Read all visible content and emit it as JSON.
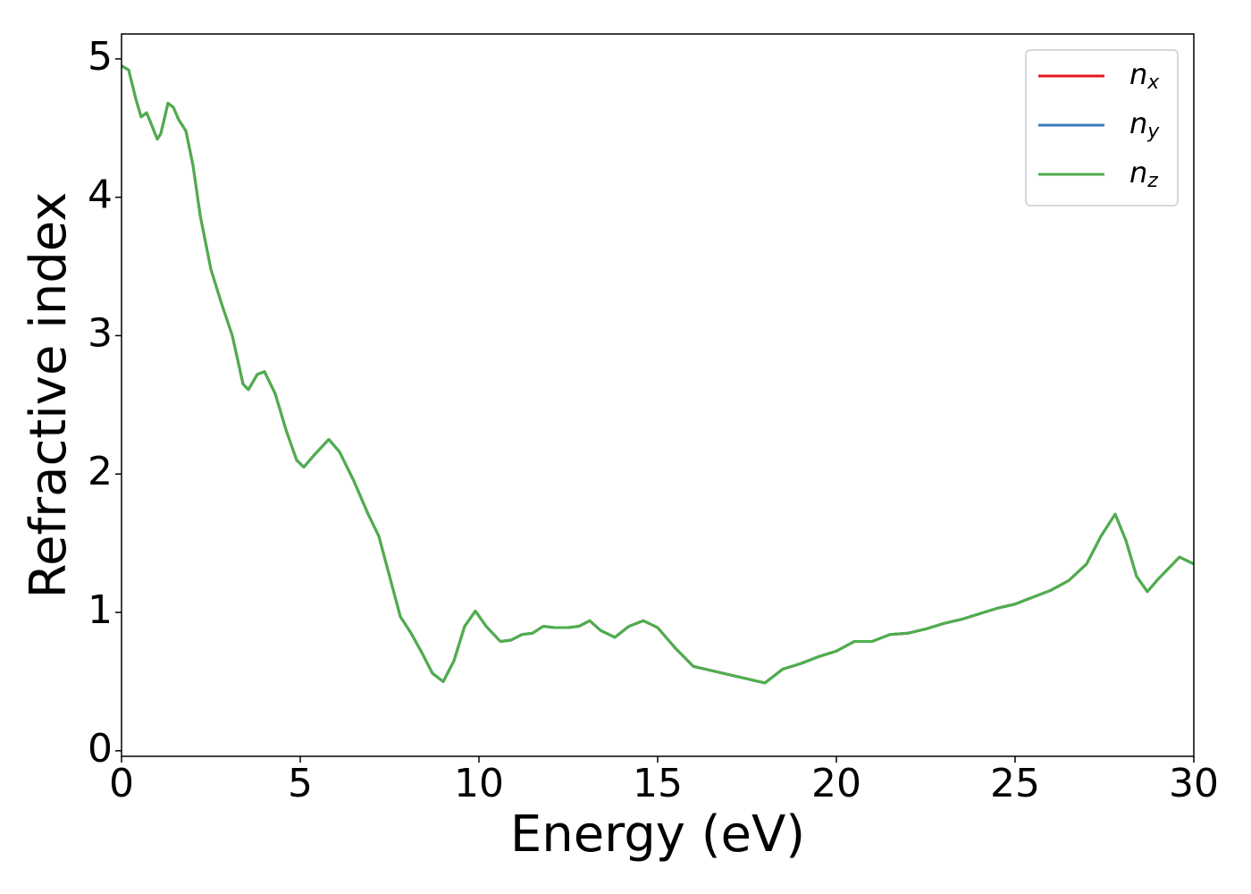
{
  "chart_data": {
    "type": "line",
    "xlabel": "Energy (eV)",
    "ylabel": "Refractive index",
    "x": [
      0,
      0.2,
      0.4,
      0.55,
      0.7,
      0.8,
      1.0,
      1.1,
      1.3,
      1.45,
      1.6,
      1.8,
      2.0,
      2.2,
      2.5,
      2.8,
      3.1,
      3.4,
      3.55,
      3.8,
      4.0,
      4.3,
      4.6,
      4.9,
      5.1,
      5.4,
      5.8,
      6.1,
      6.5,
      6.9,
      7.2,
      7.5,
      7.8,
      8.1,
      8.4,
      8.7,
      9.0,
      9.3,
      9.6,
      9.9,
      10.2,
      10.6,
      10.9,
      11.2,
      11.5,
      11.8,
      12.1,
      12.5,
      12.8,
      13.1,
      13.4,
      13.8,
      14.2,
      14.6,
      15.0,
      15.5,
      16.0,
      16.5,
      17.0,
      17.5,
      18.0,
      18.5,
      19.0,
      19.5,
      20.0,
      20.5,
      21.0,
      21.5,
      22.0,
      22.5,
      23.0,
      23.5,
      24.0,
      24.5,
      25.0,
      25.5,
      26.0,
      26.5,
      27.0,
      27.4,
      27.8,
      28.1,
      28.4,
      28.7,
      29.0,
      29.3,
      29.6,
      30.0
    ],
    "series": [
      {
        "name": "nx",
        "color": "#e41a1c",
        "values": [
          4.95,
          4.92,
          4.71,
          4.58,
          4.61,
          4.55,
          4.42,
          4.46,
          4.68,
          4.65,
          4.56,
          4.48,
          4.23,
          3.87,
          3.48,
          3.23,
          3.0,
          2.65,
          2.61,
          2.72,
          2.74,
          2.58,
          2.32,
          2.1,
          2.05,
          2.14,
          2.25,
          2.16,
          1.95,
          1.71,
          1.55,
          1.26,
          0.97,
          0.85,
          0.71,
          0.56,
          0.5,
          0.65,
          0.9,
          1.01,
          0.9,
          0.79,
          0.8,
          0.84,
          0.85,
          0.9,
          0.89,
          0.89,
          0.9,
          0.94,
          0.87,
          0.82,
          0.9,
          0.94,
          0.89,
          0.74,
          0.61,
          0.58,
          0.55,
          0.52,
          0.49,
          0.59,
          0.63,
          0.68,
          0.72,
          0.79,
          0.79,
          0.84,
          0.85,
          0.88,
          0.92,
          0.95,
          0.99,
          1.03,
          1.06,
          1.11,
          1.16,
          1.23,
          1.35,
          1.55,
          1.71,
          1.52,
          1.26,
          1.15,
          1.24,
          1.32,
          1.4,
          1.35
        ]
      },
      {
        "name": "ny",
        "color": "#377eb8",
        "values": [
          4.95,
          4.92,
          4.71,
          4.58,
          4.61,
          4.55,
          4.42,
          4.46,
          4.68,
          4.65,
          4.56,
          4.48,
          4.23,
          3.87,
          3.48,
          3.23,
          3.0,
          2.65,
          2.61,
          2.72,
          2.74,
          2.58,
          2.32,
          2.1,
          2.05,
          2.14,
          2.25,
          2.16,
          1.95,
          1.71,
          1.55,
          1.26,
          0.97,
          0.85,
          0.71,
          0.56,
          0.5,
          0.65,
          0.9,
          1.01,
          0.9,
          0.79,
          0.8,
          0.84,
          0.85,
          0.9,
          0.89,
          0.89,
          0.9,
          0.94,
          0.87,
          0.82,
          0.9,
          0.94,
          0.89,
          0.74,
          0.61,
          0.58,
          0.55,
          0.52,
          0.49,
          0.59,
          0.63,
          0.68,
          0.72,
          0.79,
          0.79,
          0.84,
          0.85,
          0.88,
          0.92,
          0.95,
          0.99,
          1.03,
          1.06,
          1.11,
          1.16,
          1.23,
          1.35,
          1.55,
          1.71,
          1.52,
          1.26,
          1.15,
          1.24,
          1.32,
          1.4,
          1.35
        ]
      },
      {
        "name": "nz",
        "color": "#4daf4a",
        "values": [
          4.95,
          4.92,
          4.71,
          4.58,
          4.61,
          4.55,
          4.42,
          4.46,
          4.68,
          4.65,
          4.56,
          4.48,
          4.23,
          3.87,
          3.48,
          3.23,
          3.0,
          2.65,
          2.61,
          2.72,
          2.74,
          2.58,
          2.32,
          2.1,
          2.05,
          2.14,
          2.25,
          2.16,
          1.95,
          1.71,
          1.55,
          1.26,
          0.97,
          0.85,
          0.71,
          0.56,
          0.5,
          0.65,
          0.9,
          1.01,
          0.9,
          0.79,
          0.8,
          0.84,
          0.85,
          0.9,
          0.89,
          0.89,
          0.9,
          0.94,
          0.87,
          0.82,
          0.9,
          0.94,
          0.89,
          0.74,
          0.61,
          0.58,
          0.55,
          0.52,
          0.49,
          0.59,
          0.63,
          0.68,
          0.72,
          0.79,
          0.79,
          0.84,
          0.85,
          0.88,
          0.92,
          0.95,
          0.99,
          1.03,
          1.06,
          1.11,
          1.16,
          1.23,
          1.35,
          1.55,
          1.71,
          1.52,
          1.26,
          1.15,
          1.24,
          1.32,
          1.4,
          1.35
        ]
      }
    ],
    "xlim": [
      0,
      30
    ],
    "xticks": [
      0,
      5,
      10,
      15,
      20,
      25,
      30
    ],
    "ylim": [
      -0.04,
      5.18
    ],
    "yticks": [
      0,
      1,
      2,
      3,
      4,
      5
    ],
    "legend": "upper right",
    "grid": false
  }
}
